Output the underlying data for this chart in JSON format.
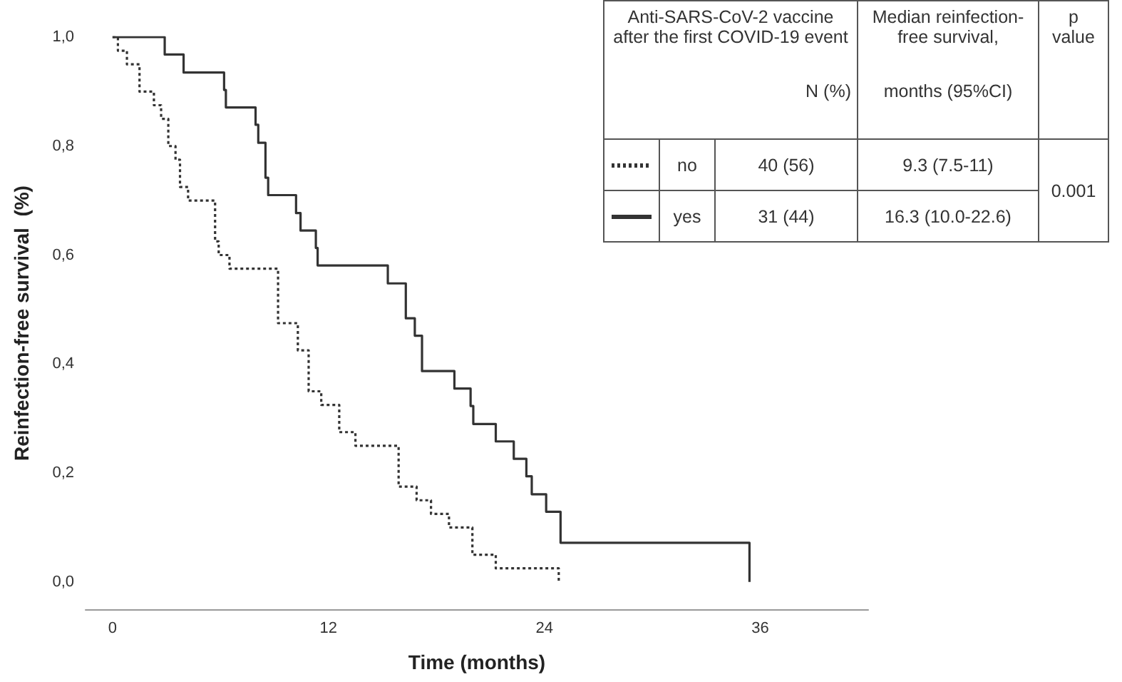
{
  "chart_data": {
    "type": "step",
    "xlabel": "Time (months)",
    "ylabel": "Reinfection-free survival  (%)",
    "legend_title": "Anti-SARS-CoV-2 vaccine after the first COVID-19 event",
    "series": [
      {
        "name": "no",
        "color": "#333333",
        "line_style": "dotted",
        "x": [
          0,
          0.3,
          0.8,
          1.5,
          2.3,
          2.7,
          3.1,
          3.5,
          3.75,
          4.2,
          5.7,
          5.9,
          6.5,
          7.2,
          9.2,
          10.3,
          10.9,
          11.6,
          12.6,
          13.5,
          15.9,
          16.9,
          17.7,
          18.7,
          20.0,
          21.3,
          24.8
        ],
        "values": [
          1.0,
          0.975,
          0.95,
          0.9,
          0.875,
          0.85,
          0.8,
          0.775,
          0.725,
          0.7,
          0.625,
          0.6,
          0.575,
          0.575,
          0.475,
          0.425,
          0.35,
          0.325,
          0.275,
          0.25,
          0.175,
          0.15,
          0.125,
          0.1,
          0.05,
          0.025,
          0.0
        ]
      },
      {
        "name": "yes",
        "color": "#333333",
        "line_style": "solid",
        "x": [
          0,
          2.9,
          3.95,
          6.2,
          6.3,
          7.95,
          8.1,
          8.5,
          8.65,
          10.2,
          10.45,
          11.3,
          11.4,
          15.3,
          16.3,
          16.8,
          17.2,
          19.0,
          19.9,
          20.05,
          21.3,
          22.3,
          23.0,
          23.3,
          24.1,
          24.9,
          35.4
        ],
        "values": [
          1.0,
          0.968,
          0.935,
          0.903,
          0.871,
          0.839,
          0.806,
          0.742,
          0.71,
          0.677,
          0.645,
          0.613,
          0.581,
          0.548,
          0.484,
          0.452,
          0.387,
          0.355,
          0.323,
          0.29,
          0.258,
          0.226,
          0.194,
          0.161,
          0.129,
          0.072,
          0.0
        ]
      }
    ],
    "xlim": [
      -1.5,
      42
    ],
    "xticks": [
      0,
      12,
      24,
      36
    ],
    "ylim": [
      -0.05,
      1.0
    ],
    "yticks": [
      {
        "value": 0,
        "label": "0,0"
      },
      {
        "value": 0.2,
        "label": "0,2"
      },
      {
        "value": 0.4,
        "label": "0,4"
      },
      {
        "value": 0.6,
        "label": "0,6"
      },
      {
        "value": 0.8,
        "label": "0,8"
      },
      {
        "value": 1.0,
        "label": "1,0"
      }
    ],
    "legend": "top right",
    "grid": false,
    "marker": "none",
    "annotations": [
      "N (%)",
      "Median reinfection-free survival,",
      "months (95%CI)",
      "p value",
      "40 (56)",
      "9.3 (7.5-11)",
      "31 (44)",
      "16.3  (10.0-22.6)",
      "0.001"
    ]
  }
}
